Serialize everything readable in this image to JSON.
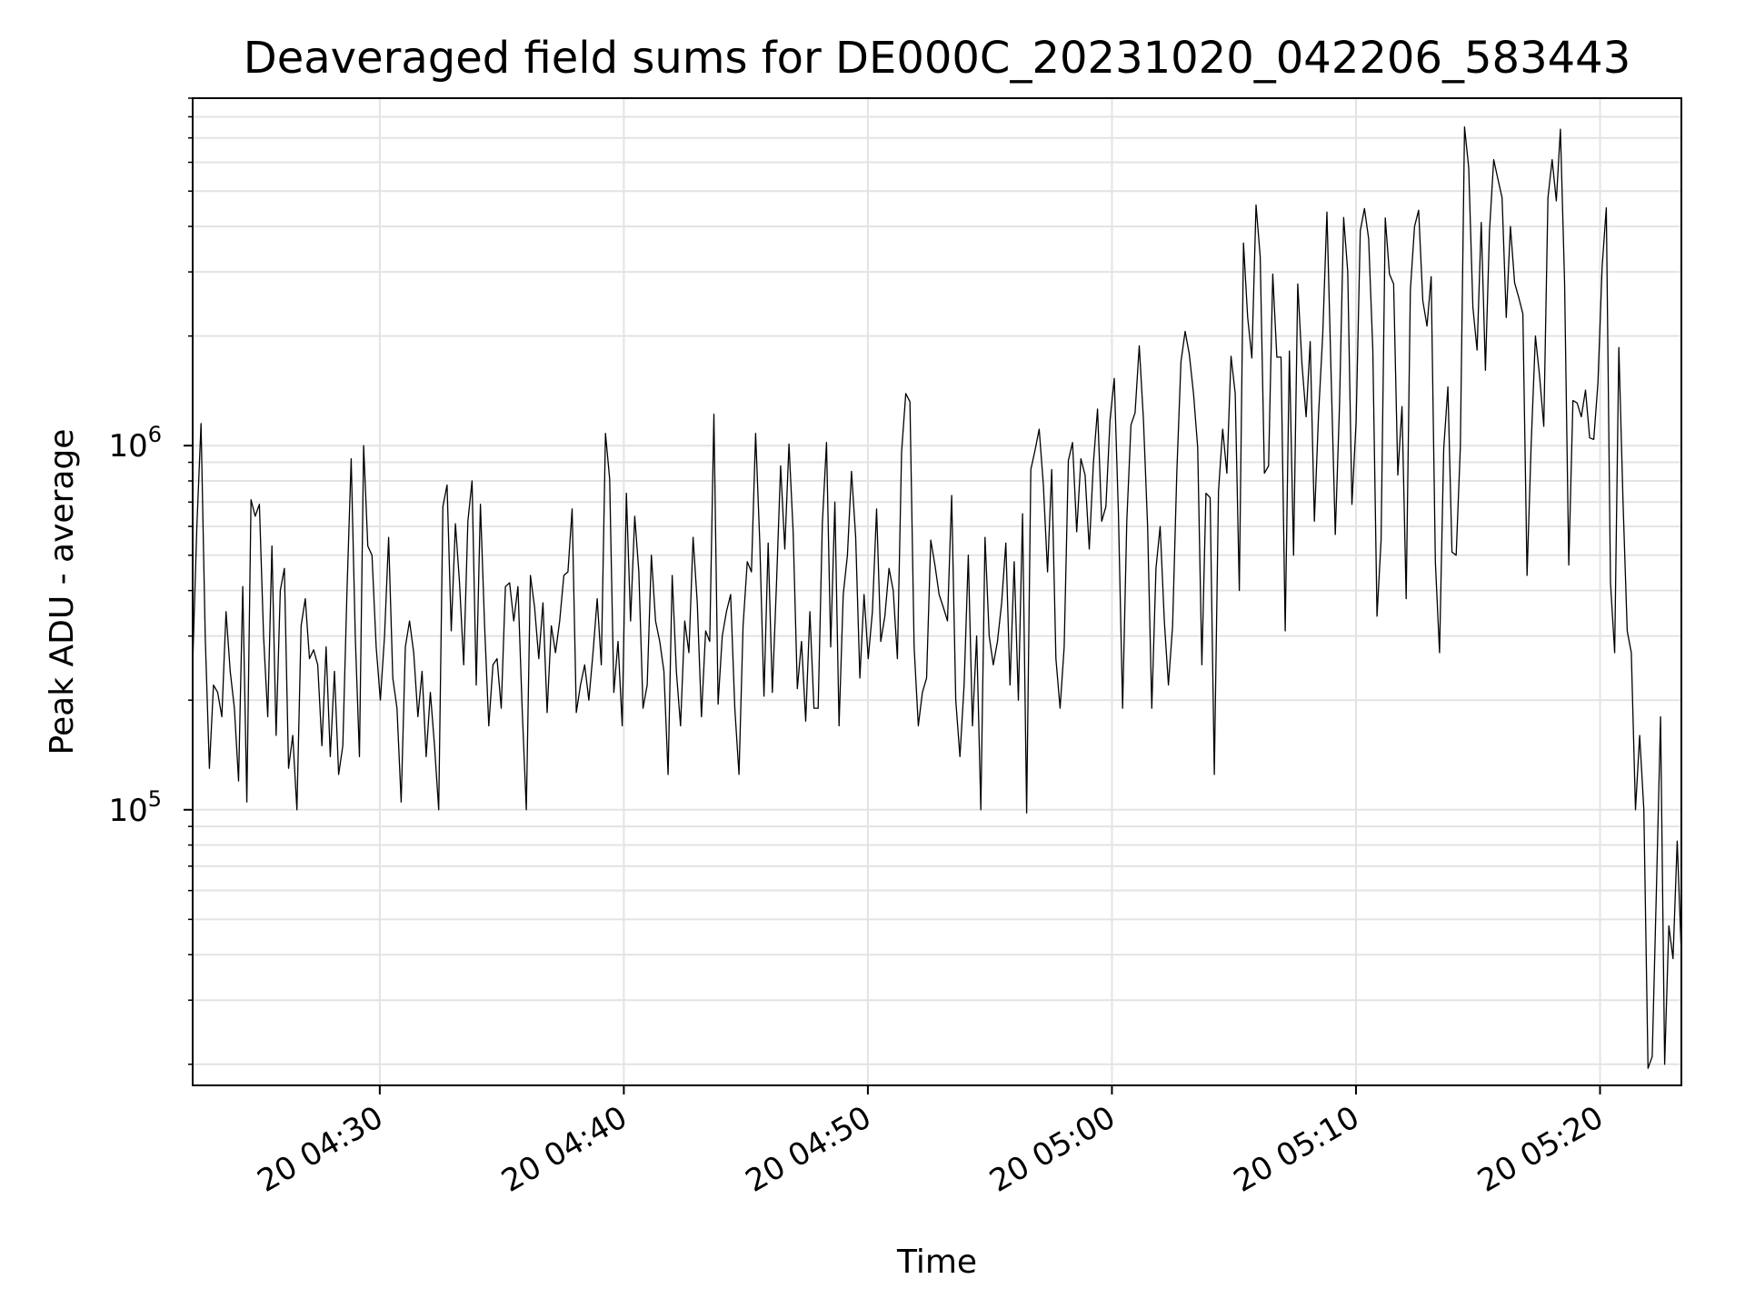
{
  "chart_data": {
    "type": "line",
    "title": "Deaveraged field sums for DE000C_20231020_042206_583443",
    "xlabel": "Time",
    "ylabel": "Peak ADU - average",
    "y_scale": "log",
    "x_range": [
      "04:22:20",
      "05:23:20"
    ],
    "ylim": [
      17500,
      9000000
    ],
    "grid": true,
    "line_color": "#000000",
    "x_ticks": [
      {
        "label": "20 04:30",
        "time": "04:30:00"
      },
      {
        "label": "20 04:40",
        "time": "04:40:00"
      },
      {
        "label": "20 04:50",
        "time": "04:50:00"
      },
      {
        "label": "20 05:00",
        "time": "05:00:00"
      },
      {
        "label": "20 05:10",
        "time": "05:10:00"
      },
      {
        "label": "20 05:20",
        "time": "05:20:00"
      }
    ],
    "y_ticks": [
      {
        "base": "10",
        "exp": "5",
        "value": 100000
      },
      {
        "base": "10",
        "exp": "6",
        "value": 1000000
      }
    ],
    "series": [
      {
        "x_start": "04:22:20",
        "x_end": "05:23:20",
        "values": [
          250000,
          600000,
          1150000,
          300000,
          130000,
          220000,
          210000,
          180000,
          350000,
          240000,
          190000,
          120000,
          410000,
          105000,
          710000,
          640000,
          690000,
          300000,
          180000,
          530000,
          160000,
          400000,
          460000,
          130000,
          160000,
          100000,
          320000,
          380000,
          260000,
          275000,
          250000,
          150000,
          280000,
          140000,
          240000,
          125000,
          150000,
          400000,
          920000,
          300000,
          140000,
          1000000,
          530000,
          500000,
          280000,
          200000,
          300000,
          560000,
          230000,
          190000,
          105000,
          280000,
          330000,
          270000,
          180000,
          240000,
          140000,
          210000,
          150000,
          100000,
          680000,
          780000,
          310000,
          610000,
          420000,
          250000,
          620000,
          800000,
          220000,
          690000,
          320000,
          170000,
          250000,
          260000,
          190000,
          410000,
          420000,
          330000,
          410000,
          190000,
          100000,
          440000,
          360000,
          260000,
          370000,
          185000,
          320000,
          270000,
          330000,
          440000,
          450000,
          670000,
          185000,
          220000,
          250000,
          200000,
          270000,
          380000,
          250000,
          1080000,
          810000,
          210000,
          290000,
          170000,
          740000,
          330000,
          640000,
          450000,
          190000,
          220000,
          500000,
          330000,
          290000,
          240000,
          125000,
          440000,
          240000,
          170000,
          330000,
          270000,
          560000,
          370000,
          180000,
          310000,
          290000,
          1220000,
          195000,
          300000,
          350000,
          390000,
          190000,
          125000,
          320000,
          480000,
          450000,
          1080000,
          540000,
          205000,
          540000,
          210000,
          420000,
          880000,
          520000,
          1010000,
          580000,
          215000,
          290000,
          175000,
          350000,
          190000,
          190000,
          610000,
          1020000,
          280000,
          700000,
          170000,
          390000,
          500000,
          850000,
          560000,
          230000,
          390000,
          260000,
          350000,
          670000,
          290000,
          340000,
          460000,
          400000,
          260000,
          960000,
          1390000,
          1320000,
          280000,
          170000,
          210000,
          230000,
          550000,
          470000,
          390000,
          360000,
          330000,
          730000,
          200000,
          140000,
          220000,
          500000,
          170000,
          300000,
          100000,
          560000,
          300000,
          250000,
          290000,
          370000,
          540000,
          220000,
          480000,
          200000,
          650000,
          98000,
          860000,
          970000,
          1110000,
          780000,
          450000,
          860000,
          260000,
          190000,
          280000,
          910000,
          1020000,
          580000,
          920000,
          830000,
          520000,
          900000,
          1260000,
          620000,
          680000,
          1180000,
          1530000,
          650000,
          190000,
          620000,
          1140000,
          1230000,
          1880000,
          1180000,
          600000,
          190000,
          460000,
          600000,
          330000,
          220000,
          320000,
          840000,
          1700000,
          2060000,
          1780000,
          1390000,
          990000,
          250000,
          740000,
          720000,
          125000,
          750000,
          1110000,
          840000,
          1760000,
          1390000,
          400000,
          3600000,
          2250000,
          1740000,
          4580000,
          3300000,
          840000,
          880000,
          2960000,
          1750000,
          1750000,
          310000,
          1820000,
          500000,
          2780000,
          1680000,
          1200000,
          1930000,
          620000,
          1220000,
          2020000,
          4380000,
          1570000,
          570000,
          1280000,
          4230000,
          3000000,
          690000,
          1160000,
          3890000,
          4480000,
          3700000,
          1830000,
          340000,
          550000,
          4220000,
          2960000,
          2780000,
          830000,
          1280000,
          380000,
          2670000,
          4000000,
          4430000,
          2500000,
          2130000,
          2910000,
          480000,
          270000,
          980000,
          1450000,
          510000,
          500000,
          990000,
          7500000,
          5800000,
          2400000,
          1830000,
          4100000,
          1610000,
          3900000,
          6100000,
          5400000,
          4800000,
          2250000,
          4000000,
          2800000,
          2550000,
          2300000,
          440000,
          1020000,
          2000000,
          1550000,
          1130000,
          4800000,
          6100000,
          4700000,
          7400000,
          2800000,
          470000,
          1330000,
          1310000,
          1200000,
          1420000,
          1050000,
          1040000,
          1490000,
          3100000,
          4500000,
          420000,
          270000,
          1860000,
          700000,
          310000,
          270000,
          100000,
          160000,
          100000,
          19500,
          21000,
          60000,
          180000,
          20000,
          48000,
          39000,
          82000,
          40000
        ]
      }
    ]
  }
}
